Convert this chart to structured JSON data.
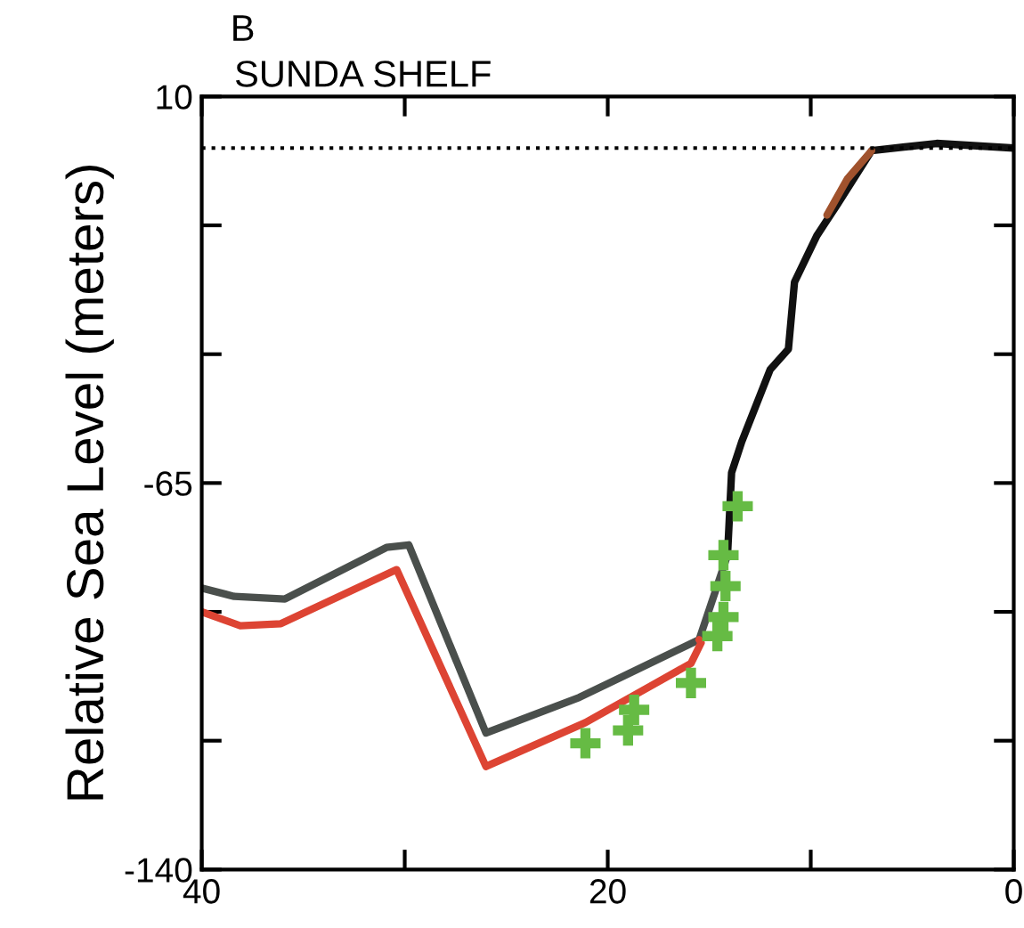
{
  "chart_data": {
    "type": "line",
    "title": "SUNDA SHELF",
    "ylabel": "Relative Sea Level (meters)",
    "annotations": [
      "B"
    ],
    "series": [
      {
        "color": "#4a4f4c",
        "x": [
          40,
          38.4,
          35.9,
          30.9,
          29.8,
          26,
          21.4,
          15.5,
          14.1
        ],
        "values": [
          -85.4,
          -87,
          -87.5,
          -77.5,
          -77,
          -113.5,
          -106.6,
          -95.4,
          -79
        ]
      },
      {
        "color": "#111111",
        "x": [
          14.1,
          13.9,
          13.4,
          12,
          11.1,
          10.8,
          9.7,
          8.7,
          7,
          3.8,
          0
        ],
        "values": [
          -79,
          -63,
          -57,
          -43,
          -39,
          -26,
          -17,
          -11,
          -0.5,
          0.9,
          0
        ]
      },
      {
        "color": "#a0522d",
        "x": [
          9.2,
          8.2,
          7.0
        ],
        "values": [
          -13,
          -6,
          -0.5
        ]
      },
      {
        "color": "#dd4433",
        "x": [
          40,
          38.1,
          36.1,
          30.4,
          26,
          21.1,
          15.9,
          15.4,
          15.5
        ],
        "values": [
          -90,
          -92.7,
          -92.3,
          -81.8,
          -120,
          -111.5,
          -100,
          -96,
          -95.4
        ]
      },
      {
        "type": "scatter",
        "marker": "cross",
        "color": "#66bb44",
        "x": [
          13.6,
          14.3,
          14.2,
          14.3,
          14.6,
          15.9,
          18.7,
          19.0,
          21.1
        ],
        "values": [
          -69.5,
          -79,
          -85,
          -91,
          -94.7,
          -103.8,
          -109,
          -113,
          -115.5
        ]
      }
    ],
    "ref_lines": [
      {
        "axis": "y",
        "value": 0,
        "line_style": "dotted",
        "color": "#000000"
      }
    ],
    "xlim": [
      40,
      0
    ],
    "xticks": [
      40,
      {
        "value": 30,
        "label": null
      },
      20,
      {
        "value": 10,
        "label": null
      },
      0
    ],
    "ylim": [
      -140,
      10
    ],
    "yticks": [
      -140,
      {
        "value": -115,
        "label": null
      },
      {
        "value": -90,
        "label": null
      },
      -65,
      {
        "value": -40,
        "label": null
      },
      {
        "value": -15,
        "label": null
      },
      10
    ],
    "grid": false,
    "legend": false,
    "marker": "none",
    "line_style": "solid"
  }
}
